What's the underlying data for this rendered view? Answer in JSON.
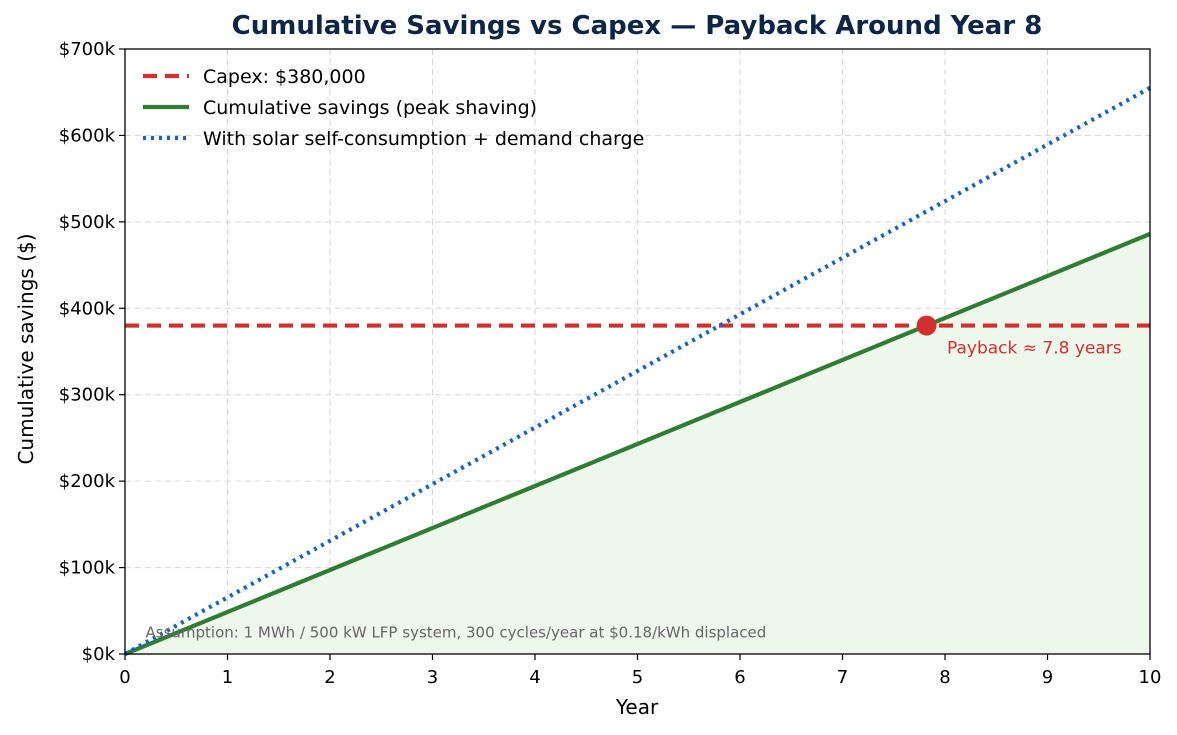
{
  "chart_data": {
    "type": "line",
    "title": "Cumulative Savings vs Capex — Payback Around Year 8",
    "xlabel": "Year",
    "ylabel": "Cumulative savings ($)",
    "xlim": [
      0,
      10
    ],
    "ylim": [
      0,
      700000
    ],
    "x_ticks": [
      0,
      1,
      2,
      3,
      4,
      5,
      6,
      7,
      8,
      9,
      10
    ],
    "x_tick_labels": [
      "0",
      "1",
      "2",
      "3",
      "4",
      "5",
      "6",
      "7",
      "8",
      "9",
      "10"
    ],
    "y_ticks": [
      0,
      100000,
      200000,
      300000,
      400000,
      500000,
      600000,
      700000
    ],
    "y_tick_labels": [
      "$0k",
      "$100k",
      "$200k",
      "$300k",
      "$400k",
      "$500k",
      "$600k",
      "$700k"
    ],
    "grid": true,
    "legend_position": "top-left",
    "series": [
      {
        "name": "Capex: $380,000",
        "style": "dashed",
        "color": "#d32f2f",
        "x": [
          0,
          10
        ],
        "y": [
          380000,
          380000
        ]
      },
      {
        "name": "Cumulative savings (peak shaving)",
        "style": "solid",
        "color": "#2e7d32",
        "fill": "#eef7ec",
        "x": [
          0,
          10
        ],
        "y": [
          0,
          486000
        ]
      },
      {
        "name": "With solar self-consumption + demand charge",
        "style": "dotted",
        "color": "#1565c0",
        "x": [
          0,
          10
        ],
        "y": [
          0,
          655000
        ]
      }
    ],
    "payback_point": {
      "x": 7.82,
      "y": 380000,
      "color": "#d32f2f"
    },
    "annotations": [
      {
        "text": "Payback ≈ 7.8 years",
        "x": 8.0,
        "y": 350000
      },
      {
        "text": "Assumption: 1 MWh / 500 kW LFP system, 300 cycles/year at $0.18/kWh displaced",
        "x": 0.2,
        "y": 20000
      }
    ]
  }
}
